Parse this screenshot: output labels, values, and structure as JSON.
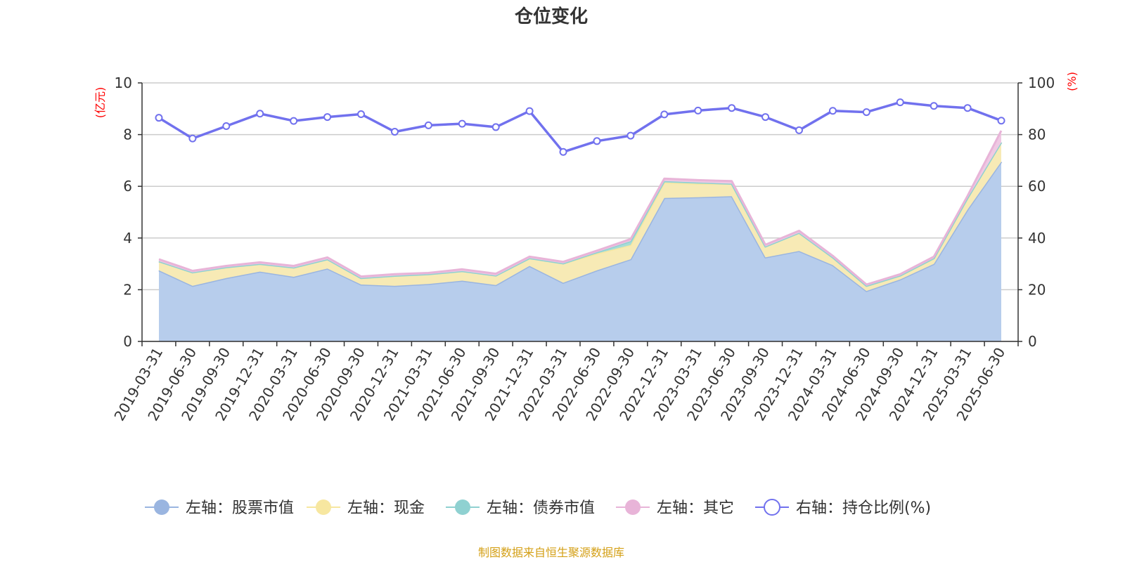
{
  "chart_data": {
    "type": "area",
    "title": "仓位变化",
    "left_axis": {
      "unit": "(亿元)",
      "ylim": [
        0,
        10
      ],
      "ticks": [
        0,
        2,
        4,
        6,
        8,
        10
      ]
    },
    "right_axis": {
      "unit": "(%)",
      "ylim": [
        0,
        100
      ],
      "ticks": [
        0,
        20,
        40,
        60,
        80,
        100
      ]
    },
    "categories": [
      "2019-03-31",
      "2019-06-30",
      "2019-09-30",
      "2019-12-31",
      "2020-03-31",
      "2020-06-30",
      "2020-09-30",
      "2020-12-31",
      "2021-03-31",
      "2021-06-30",
      "2021-09-30",
      "2021-12-31",
      "2022-03-31",
      "2022-06-30",
      "2022-09-30",
      "2022-12-31",
      "2023-03-31",
      "2023-06-30",
      "2023-09-30",
      "2023-12-31",
      "2024-03-31",
      "2024-06-30",
      "2024-09-30",
      "2024-12-31",
      "2025-03-31",
      "2025-06-30"
    ],
    "stacked_series": [
      {
        "name": "左轴：股票市值",
        "color": "#9ab5e0",
        "fill": "#b7cdec",
        "values": [
          2.75,
          2.15,
          2.45,
          2.7,
          2.5,
          2.82,
          2.2,
          2.15,
          2.22,
          2.35,
          2.18,
          2.92,
          2.27,
          2.75,
          3.18,
          5.55,
          5.58,
          5.62,
          3.25,
          3.5,
          2.95,
          1.95,
          2.4,
          3.0,
          5.1,
          6.95
        ]
      },
      {
        "name": "左轴：现金",
        "color": "#f7e7a0",
        "fill": "#f7eab5",
        "values": [
          0.35,
          0.52,
          0.42,
          0.3,
          0.36,
          0.36,
          0.25,
          0.39,
          0.38,
          0.37,
          0.37,
          0.3,
          0.75,
          0.65,
          0.55,
          0.6,
          0.52,
          0.48,
          0.42,
          0.7,
          0.3,
          0.2,
          0.15,
          0.22,
          0.45,
          0.75
        ]
      },
      {
        "name": "左轴：债券市值",
        "color": "#8fd1d1",
        "fill": "#a8dcd6",
        "values": [
          0,
          0,
          0,
          0,
          0,
          0,
          0,
          0,
          0,
          0,
          0,
          0,
          0,
          0.05,
          0.15,
          0.05,
          0.05,
          0,
          0,
          0,
          0,
          0,
          0,
          0,
          0,
          0
        ]
      },
      {
        "name": "左轴：其它",
        "color": "#e8b4d8",
        "fill": "#efc9e3",
        "values": [
          0.08,
          0.06,
          0.05,
          0.06,
          0.06,
          0.07,
          0.06,
          0.06,
          0.05,
          0.07,
          0.07,
          0.06,
          0.06,
          0.06,
          0.08,
          0.1,
          0.09,
          0.1,
          0.07,
          0.08,
          0.06,
          0.05,
          0.05,
          0.06,
          0.08,
          0.45
        ]
      }
    ],
    "line_series": {
      "name": "右轴：持仓比例(%)",
      "color": "#7171ee",
      "values": [
        86.5,
        78.5,
        83.3,
        88.1,
        85.3,
        86.8,
        87.9,
        81.1,
        83.6,
        84.2,
        82.9,
        89.1,
        73.3,
        77.5,
        79.6,
        87.8,
        89.3,
        90.3,
        86.8,
        81.7,
        89.2,
        88.7,
        92.5,
        91.1,
        90.3,
        85.4
      ]
    },
    "legend_position": "bottom",
    "grid": true,
    "source_note": "制图数据来自恒生聚源数据库"
  }
}
